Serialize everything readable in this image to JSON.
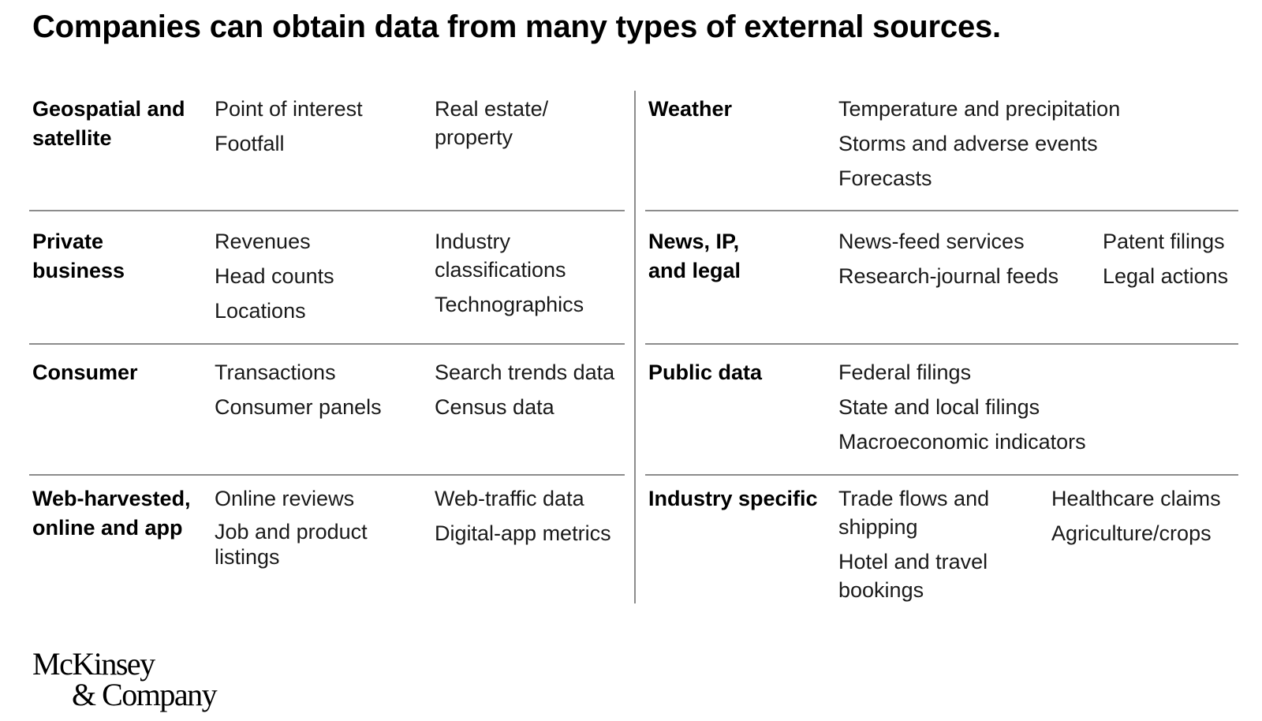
{
  "title": "Companies can obtain data from many types of external sources.",
  "left": [
    {
      "category": [
        "Geospatial and",
        "satellite"
      ],
      "col1": [
        "Point of interest",
        "Footfall"
      ],
      "col2": [
        [
          "Real estate/",
          "property"
        ]
      ]
    },
    {
      "category": [
        "Private",
        "business"
      ],
      "col1": [
        "Revenues",
        "Head counts",
        "Locations"
      ],
      "col2": [
        [
          "Industry",
          "classifications"
        ],
        "Technographics"
      ]
    },
    {
      "category": [
        "Consumer"
      ],
      "col1": [
        "Transactions",
        "Consumer panels"
      ],
      "col2": [
        "Search trends data",
        "Census data"
      ]
    },
    {
      "category": [
        "Web-harvested,",
        "online and app"
      ],
      "col1": [
        "Online reviews",
        [
          "Job and product",
          "listings"
        ]
      ],
      "col2": [
        "Web-traffic data",
        "Digital-app metrics"
      ]
    }
  ],
  "right": [
    {
      "category": [
        "Weather"
      ],
      "col1": [
        "Temperature and precipitation",
        "Storms and adverse events",
        "Forecasts"
      ],
      "col2": []
    },
    {
      "category": [
        "News, IP,",
        "and legal"
      ],
      "col1": [
        "News-feed services",
        "Research-journal feeds"
      ],
      "col2": [
        "Patent filings",
        "Legal actions"
      ]
    },
    {
      "category": [
        "Public data"
      ],
      "col1": [
        "Federal filings",
        "State and local filings",
        "Macroeconomic indicators"
      ],
      "col2": []
    },
    {
      "category": [
        "Industry specific"
      ],
      "col1": [
        [
          "Trade flows and",
          "shipping"
        ],
        [
          "Hotel and travel",
          "bookings"
        ]
      ],
      "col2": [
        "Healthcare claims",
        "Agriculture/crops"
      ]
    }
  ],
  "logo": {
    "line1": "McKinsey",
    "line2": "& Company"
  }
}
